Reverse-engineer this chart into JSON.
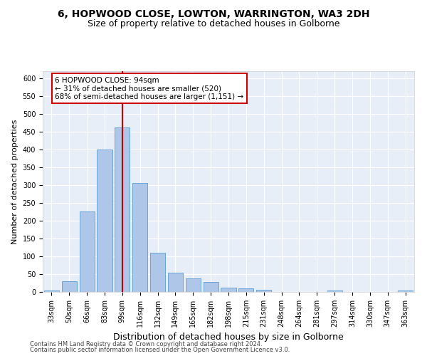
{
  "title1": "6, HOPWOOD CLOSE, LOWTON, WARRINGTON, WA3 2DH",
  "title2": "Size of property relative to detached houses in Golborne",
  "xlabel": "Distribution of detached houses by size in Golborne",
  "ylabel": "Number of detached properties",
  "categories": [
    "33sqm",
    "50sqm",
    "66sqm",
    "83sqm",
    "99sqm",
    "116sqm",
    "132sqm",
    "149sqm",
    "165sqm",
    "182sqm",
    "198sqm",
    "215sqm",
    "231sqm",
    "248sqm",
    "264sqm",
    "281sqm",
    "297sqm",
    "314sqm",
    "330sqm",
    "347sqm",
    "363sqm"
  ],
  "values": [
    5,
    30,
    227,
    401,
    463,
    307,
    110,
    54,
    39,
    28,
    13,
    11,
    6,
    0,
    0,
    0,
    5,
    0,
    0,
    0,
    5
  ],
  "bar_color": "#aec6e8",
  "bar_edge_color": "#5b9bd5",
  "vline_x_idx": 4,
  "vline_color": "#cc0000",
  "annotation_text": "6 HOPWOOD CLOSE: 94sqm\n← 31% of detached houses are smaller (520)\n68% of semi-detached houses are larger (1,151) →",
  "annotation_box_color": "#ffffff",
  "annotation_box_edge": "#cc0000",
  "ylim": [
    0,
    620
  ],
  "yticks": [
    0,
    50,
    100,
    150,
    200,
    250,
    300,
    350,
    400,
    450,
    500,
    550,
    600
  ],
  "footer1": "Contains HM Land Registry data © Crown copyright and database right 2024.",
  "footer2": "Contains public sector information licensed under the Open Government Licence v3.0.",
  "bg_color": "#e8eef7",
  "title_fontsize": 10,
  "subtitle_fontsize": 9,
  "ylabel_fontsize": 8,
  "xlabel_fontsize": 9,
  "tick_fontsize": 7,
  "footer_fontsize": 6,
  "ann_fontsize": 7.5
}
